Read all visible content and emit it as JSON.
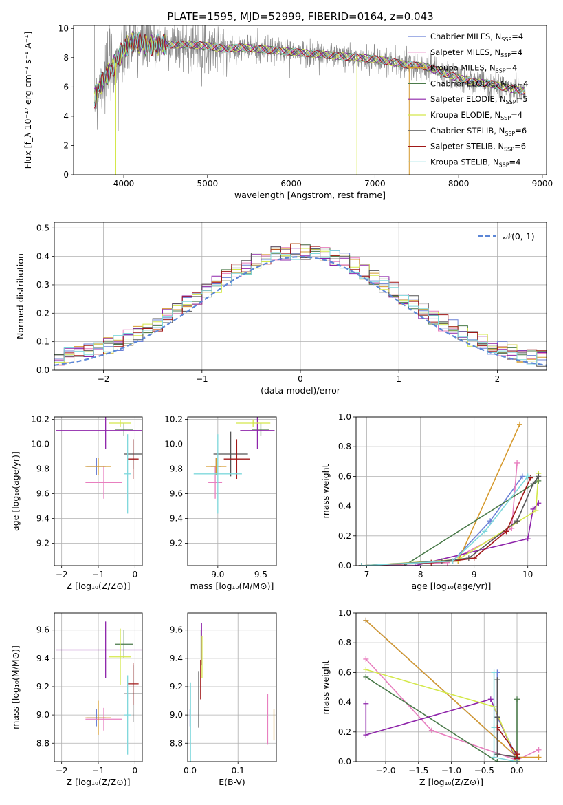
{
  "figure": {
    "title": "PLATE=1595, MJD=52999, FIBERID=0164, z=0.043"
  },
  "series_colors": {
    "Chabrier MILES": "#6b80d6",
    "Salpeter MILES": "#e87fbf",
    "Kroupa MILES": "#d69a2e",
    "Chabrier ELODIE": "#4a7a4a",
    "Salpeter ELODIE": "#8e24aa",
    "Kroupa ELODIE": "#d4e84a",
    "Chabrier STELIB": "#555555",
    "Salpeter STELIB": "#a01818",
    "Kroupa STELIB": "#7fd8dc"
  },
  "chart_data": [
    {
      "type": "line",
      "id": "spectrum",
      "title": "",
      "xlabel": "wavelength [Angstrom, rest frame]",
      "ylabel": "Flux [f_λ 10⁻¹⁷ erg cm⁻² s⁻¹ A⁻¹]",
      "xlim": [
        3400,
        9050
      ],
      "ylim": [
        0,
        10.2
      ],
      "xticks": [
        4000,
        5000,
        6000,
        7000,
        8000,
        9000
      ],
      "yticks": [
        0,
        2,
        4,
        6,
        8,
        10
      ],
      "grid": false,
      "legend_position": "right",
      "data_x": [
        3650,
        3700,
        3800,
        3900,
        4000,
        4100,
        4200,
        4300,
        4400,
        4600,
        4800,
        5000,
        5200,
        5400,
        5600,
        5800,
        6000,
        6200,
        6400,
        6600,
        6800,
        7000,
        7200,
        7400,
        7600,
        7800,
        8000,
        8200,
        8400,
        8600,
        8800
      ],
      "data_y": [
        5.2,
        6.0,
        6.8,
        7.6,
        8.6,
        9.1,
        9.0,
        8.8,
        8.9,
        8.9,
        8.9,
        8.8,
        8.6,
        8.7,
        8.6,
        8.5,
        8.4,
        8.3,
        8.2,
        8.1,
        8.0,
        7.9,
        7.7,
        7.5,
        7.4,
        7.0,
        6.6,
        6.3,
        6.2,
        5.9,
        5.7
      ],
      "legend": [
        {
          "series": "Chabrier MILES",
          "label": "Chabrier MILES, N",
          "sub": "SSP",
          "n": "=4"
        },
        {
          "series": "Salpeter MILES",
          "label": "Salpeter MILES, N",
          "sub": "SSP",
          "n": "=4"
        },
        {
          "series": "Kroupa MILES",
          "label": "Kroupa MILES, N",
          "sub": "SSP",
          "n": "=4"
        },
        {
          "series": "Chabrier ELODIE",
          "label": "Chabrier ELODIE, N",
          "sub": "SSP",
          "n": "=4"
        },
        {
          "series": "Salpeter ELODIE",
          "label": "Salpeter ELODIE, N",
          "sub": "SSP",
          "n": "=5"
        },
        {
          "series": "Kroupa ELODIE",
          "label": "Kroupa ELODIE, N",
          "sub": "SSP",
          "n": "=4"
        },
        {
          "series": "Chabrier STELIB",
          "label": "Chabrier STELIB, N",
          "sub": "SSP",
          "n": "=6"
        },
        {
          "series": "Salpeter STELIB",
          "label": "Salpeter STELIB, N",
          "sub": "SSP",
          "n": "=6"
        },
        {
          "series": "Kroupa STELIB",
          "label": "Kroupa STELIB, N",
          "sub": "SSP",
          "n": "=4"
        }
      ]
    },
    {
      "type": "line",
      "id": "residuals",
      "xlabel": "(data-model)/error",
      "ylabel": "Normed distribution",
      "xlim": [
        -2.5,
        2.5
      ],
      "ylim": [
        0,
        0.52
      ],
      "xticks": [
        -2,
        -1,
        0,
        1,
        2
      ],
      "yticks": [
        0.0,
        0.1,
        0.2,
        0.3,
        0.4,
        0.5
      ],
      "grid": true,
      "legend_position": "top-right",
      "legend": [
        {
          "label": "𝒩(0, 1)"
        }
      ],
      "gaussian": {
        "mean": 0,
        "sigma": 1
      }
    },
    {
      "type": "scatter",
      "id": "z-age",
      "xlabel": "Z [log₁₀(Z/Z⊙)]",
      "ylabel": "age  [log₁₀(age/yr)]",
      "xlim": [
        -2.2,
        0.2
      ],
      "ylim": [
        9.02,
        10.22
      ],
      "xticks": [
        -2,
        -1,
        0
      ],
      "yticks": [
        9.2,
        9.4,
        9.6,
        9.8,
        10.0,
        10.2
      ],
      "grid": true,
      "points": [
        {
          "series": "Chabrier MILES",
          "x": -1.05,
          "xerr": 0.25,
          "y": 9.82,
          "yerr": 0.07
        },
        {
          "series": "Salpeter MILES",
          "x": -0.85,
          "xerr": 0.5,
          "y": 9.69,
          "yerr": 0.13
        },
        {
          "series": "Kroupa MILES",
          "x": -1.0,
          "xerr": 0.35,
          "y": 9.82,
          "yerr": 0.07
        },
        {
          "series": "Chabrier ELODIE",
          "x": -0.3,
          "xerr": 0.25,
          "y": 10.12,
          "yerr": 0.05
        },
        {
          "series": "Salpeter ELODIE",
          "x": -0.8,
          "xerr": 1.35,
          "y": 10.11,
          "yerr": 0.15
        },
        {
          "series": "Kroupa ELODIE",
          "x": -0.4,
          "xerr": 0.3,
          "y": 10.17,
          "yerr": 0.03
        },
        {
          "series": "Chabrier STELIB",
          "x": -0.05,
          "xerr": 0.25,
          "y": 9.92,
          "yerr": 0.12
        },
        {
          "series": "Salpeter STELIB",
          "x": -0.05,
          "xerr": 0.15,
          "y": 9.88,
          "yerr": 0.16
        },
        {
          "series": "Kroupa STELIB",
          "x": -0.2,
          "xerr": 0.1,
          "y": 9.76,
          "yerr": 0.32
        }
      ]
    },
    {
      "type": "scatter",
      "id": "mass-age",
      "xlabel": "mass [log₁₀(M/M⊙)]",
      "ylabel": "",
      "xlim": [
        8.65,
        9.68
      ],
      "ylim": [
        9.02,
        10.22
      ],
      "xticks": [
        9.0,
        9.5
      ],
      "yticks": [
        9.2,
        9.4,
        9.6,
        9.8,
        10.0,
        10.2
      ],
      "grid": true,
      "points": [
        {
          "series": "Chabrier MILES",
          "x": 8.98,
          "xerr": 0.06,
          "y": 9.82,
          "yerr": 0.07
        },
        {
          "series": "Salpeter MILES",
          "x": 8.97,
          "xerr": 0.08,
          "y": 9.69,
          "yerr": 0.13
        },
        {
          "series": "Kroupa MILES",
          "x": 8.98,
          "xerr": 0.12,
          "y": 9.82,
          "yerr": 0.07
        },
        {
          "series": "Chabrier ELODIE",
          "x": 9.5,
          "xerr": 0.1,
          "y": 10.12,
          "yerr": 0.05
        },
        {
          "series": "Salpeter ELODIE",
          "x": 9.46,
          "xerr": 0.2,
          "y": 10.11,
          "yerr": 0.15
        },
        {
          "series": "Kroupa ELODIE",
          "x": 9.41,
          "xerr": 0.2,
          "y": 10.17,
          "yerr": 0.03
        },
        {
          "series": "Chabrier STELIB",
          "x": 9.15,
          "xerr": 0.2,
          "y": 9.92,
          "yerr": 0.18
        },
        {
          "series": "Salpeter STELIB",
          "x": 9.22,
          "xerr": 0.15,
          "y": 9.88,
          "yerr": 0.16
        },
        {
          "series": "Kroupa STELIB",
          "x": 9.0,
          "xerr": 0.28,
          "y": 9.76,
          "yerr": 0.32
        }
      ]
    },
    {
      "type": "line",
      "id": "age-weight",
      "xlabel": "age  [log₁₀(age/yr)]",
      "ylabel": "mass weight",
      "xlim": [
        6.8,
        10.35
      ],
      "ylim": [
        0,
        1.0
      ],
      "xticks": [
        7,
        8,
        9,
        10
      ],
      "yticks": [
        0.0,
        0.2,
        0.4,
        0.6,
        0.8,
        1.0
      ],
      "grid": true,
      "series": [
        {
          "name": "Chabrier MILES",
          "x": [
            6.9,
            8.6,
            9.3,
            9.9
          ],
          "y": [
            0.0,
            0.03,
            0.3,
            0.6
          ]
        },
        {
          "name": "Salpeter MILES",
          "x": [
            6.9,
            8.5,
            9.7,
            9.8
          ],
          "y": [
            0.0,
            0.02,
            0.25,
            0.69
          ]
        },
        {
          "name": "Kroupa MILES",
          "x": [
            6.9,
            8.7,
            9.85
          ],
          "y": [
            0.0,
            0.03,
            0.95
          ]
        },
        {
          "name": "Chabrier ELODIE",
          "x": [
            6.9,
            7.7,
            10.2
          ],
          "y": [
            0.0,
            0.0,
            0.57
          ]
        },
        {
          "name": "Salpeter ELODIE",
          "x": [
            6.9,
            7.9,
            10.0,
            10.1,
            10.2
          ],
          "y": [
            0.0,
            0.0,
            0.18,
            0.38,
            0.42
          ]
        },
        {
          "name": "Kroupa ELODIE",
          "x": [
            6.9,
            8.7,
            10.15,
            10.2
          ],
          "y": [
            0.0,
            0.04,
            0.37,
            0.62
          ]
        },
        {
          "name": "Chabrier STELIB",
          "x": [
            6.9,
            8.4,
            8.9,
            9.8,
            10.1,
            10.2
          ],
          "y": [
            0.0,
            0.03,
            0.05,
            0.3,
            0.55,
            0.6
          ]
        },
        {
          "name": "Salpeter STELIB",
          "x": [
            6.9,
            8.2,
            8.6,
            9.0,
            9.6,
            10.05
          ],
          "y": [
            0.0,
            0.02,
            0.03,
            0.05,
            0.23,
            0.59
          ]
        },
        {
          "name": "Kroupa STELIB",
          "x": [
            6.9,
            8.6,
            9.2,
            10.0
          ],
          "y": [
            0.0,
            0.03,
            0.23,
            0.6
          ]
        }
      ]
    },
    {
      "type": "scatter",
      "id": "z-mass",
      "xlabel": "Z [log₁₀(Z/Z⊙)]",
      "ylabel": "mass [log₁₀(M/M⊙)]",
      "xlim": [
        -2.2,
        0.2
      ],
      "ylim": [
        8.67,
        9.72
      ],
      "xticks": [
        -2,
        -1,
        0
      ],
      "yticks": [
        8.8,
        9.0,
        9.2,
        9.4,
        9.6
      ],
      "grid": true,
      "points": [
        {
          "series": "Chabrier MILES",
          "x": -1.05,
          "xerr": 0.25,
          "y": 8.98,
          "yerr": 0.06
        },
        {
          "series": "Salpeter MILES",
          "x": -0.85,
          "xerr": 0.5,
          "y": 8.97,
          "yerr": 0.08
        },
        {
          "series": "Kroupa MILES",
          "x": -1.0,
          "xerr": 0.35,
          "y": 8.98,
          "yerr": 0.12
        },
        {
          "series": "Chabrier ELODIE",
          "x": -0.3,
          "xerr": 0.25,
          "y": 9.5,
          "yerr": 0.1
        },
        {
          "series": "Salpeter ELODIE",
          "x": -0.8,
          "xerr": 1.35,
          "y": 9.46,
          "yerr": 0.2
        },
        {
          "series": "Kroupa ELODIE",
          "x": -0.4,
          "xerr": 0.3,
          "y": 9.41,
          "yerr": 0.2
        },
        {
          "series": "Chabrier STELIB",
          "x": -0.05,
          "xerr": 0.25,
          "y": 9.15,
          "yerr": 0.2
        },
        {
          "series": "Salpeter STELIB",
          "x": -0.05,
          "xerr": 0.15,
          "y": 9.22,
          "yerr": 0.15
        },
        {
          "series": "Kroupa STELIB",
          "x": -0.2,
          "xerr": 0.1,
          "y": 9.0,
          "yerr": 0.28
        }
      ]
    },
    {
      "type": "scatter",
      "id": "ebv-mass",
      "xlabel": "E(B-V)",
      "ylabel": "",
      "xlim": [
        -0.005,
        0.18
      ],
      "ylim": [
        8.67,
        9.72
      ],
      "xticks": [
        0.0,
        0.1
      ],
      "yticks": [
        8.8,
        9.0,
        9.2,
        9.4,
        9.6
      ],
      "grid": true,
      "points": [
        {
          "series": "Chabrier MILES",
          "x": 0.0,
          "xerr": 0,
          "y": 8.98,
          "yerr": 0.06
        },
        {
          "series": "Salpeter MILES",
          "x": 0.162,
          "xerr": 0,
          "y": 8.97,
          "yerr": 0.18
        },
        {
          "series": "Kroupa MILES",
          "x": 0.175,
          "xerr": 0,
          "y": 8.93,
          "yerr": 0.11
        },
        {
          "series": "Chabrier ELODIE",
          "x": 0.023,
          "xerr": 0,
          "y": 9.5,
          "yerr": 0.1
        },
        {
          "series": "Salpeter ELODIE",
          "x": 0.024,
          "xerr": 0,
          "y": 9.5,
          "yerr": 0.15
        },
        {
          "series": "Kroupa ELODIE",
          "x": 0.025,
          "xerr": 0,
          "y": 9.41,
          "yerr": 0.15
        },
        {
          "series": "Chabrier STELIB",
          "x": 0.018,
          "xerr": 0,
          "y": 9.11,
          "yerr": 0.2
        },
        {
          "series": "Salpeter STELIB",
          "x": 0.022,
          "xerr": 0,
          "y": 9.25,
          "yerr": 0.14
        },
        {
          "series": "Kroupa STELIB",
          "x": 0.001,
          "xerr": 0,
          "y": 8.95,
          "yerr": 0.28
        }
      ]
    },
    {
      "type": "line",
      "id": "z-weight",
      "xlabel": "Z [log₁₀(Z/Z⊙)]",
      "ylabel": "mass weight",
      "xlim": [
        -2.45,
        0.45
      ],
      "ylim": [
        0,
        1.0
      ],
      "xticks": [
        -2.0,
        -1.5,
        -1.0,
        -0.5,
        0.0
      ],
      "yticks": [
        0.0,
        0.2,
        0.4,
        0.6,
        0.8,
        1.0
      ],
      "grid": true,
      "series": [
        {
          "name": "Chabrier MILES",
          "x": [
            -2.3,
            0.0,
            -0.3,
            -0.3
          ],
          "y": [
            0.95,
            0.03,
            0.3,
            0.6
          ]
        },
        {
          "name": "Salpeter MILES",
          "x": [
            -2.3,
            -1.3,
            0.0,
            0.33
          ],
          "y": [
            0.69,
            0.21,
            0.01,
            0.08
          ]
        },
        {
          "name": "Kroupa MILES",
          "x": [
            -2.3,
            0.0,
            0.33
          ],
          "y": [
            0.95,
            0.03,
            0.03
          ]
        },
        {
          "name": "Chabrier ELODIE",
          "x": [
            -2.3,
            -0.3,
            0.0,
            0.0
          ],
          "y": [
            0.57,
            0.0,
            0.0,
            0.42
          ]
        },
        {
          "name": "Salpeter ELODIE",
          "x": [
            -2.3,
            -2.3,
            -0.4,
            0.0
          ],
          "y": [
            0.39,
            0.18,
            0.42,
            0.0
          ]
        },
        {
          "name": "Kroupa ELODIE",
          "x": [
            -2.3,
            -0.35,
            0.0
          ],
          "y": [
            0.62,
            0.37,
            0.01
          ]
        },
        {
          "name": "Chabrier STELIB",
          "x": [
            -0.3,
            -0.3,
            -0.3,
            0.0,
            0.0
          ],
          "y": [
            0.55,
            0.3,
            0.05,
            0.03,
            0.0
          ]
        },
        {
          "name": "Salpeter STELIB",
          "x": [
            -0.3,
            0.0,
            0.0
          ],
          "y": [
            0.23,
            0.05,
            0.02
          ]
        },
        {
          "name": "Kroupa STELIB",
          "x": [
            -0.35,
            -0.35,
            -0.35,
            0.0
          ],
          "y": [
            0.6,
            0.23,
            0.03,
            0.0
          ]
        }
      ]
    }
  ]
}
